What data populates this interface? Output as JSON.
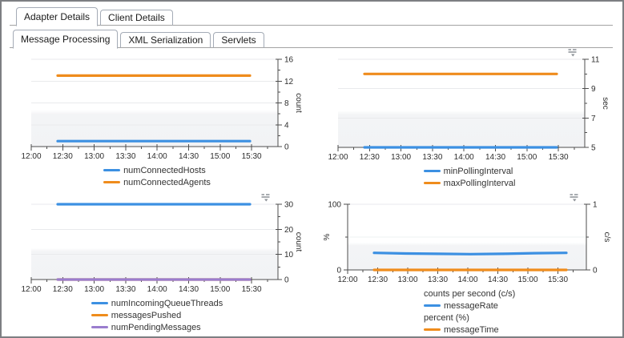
{
  "tabs": {
    "level1": [
      {
        "label": "Adapter Details",
        "active": true
      },
      {
        "label": "Client Details",
        "active": false
      }
    ],
    "level2": [
      {
        "label": "Message Processing",
        "active": true
      },
      {
        "label": "XML Serialization",
        "active": false
      },
      {
        "label": "Servlets",
        "active": false
      }
    ]
  },
  "colors": {
    "blue": "#3c90e2",
    "orange": "#ef8c1c",
    "purple": "#9a7dce"
  },
  "icons": {
    "chart_menu": "list-with-down-arrow"
  },
  "chart_data": [
    {
      "type": "line",
      "name": "connected-hosts-agents",
      "x": [
        "12:00",
        "12:30",
        "13:00",
        "13:30",
        "14:00",
        "14:30",
        "15:00",
        "15:30"
      ],
      "y_right": {
        "label": "count",
        "min": 0,
        "max": 16,
        "ticks": [
          0,
          4,
          8,
          12,
          16
        ],
        "minors": [
          2,
          6,
          10,
          14
        ]
      },
      "menu_icon": false,
      "legend_position": "bottom-center",
      "series": [
        {
          "name": "numConnectedHosts",
          "color": "#3c90e2",
          "values": [
            1,
            1,
            1,
            1,
            1,
            1,
            1
          ]
        },
        {
          "name": "numConnectedAgents",
          "color": "#ef8c1c",
          "values": [
            13,
            13,
            13,
            13,
            13,
            13,
            13
          ]
        }
      ]
    },
    {
      "type": "line",
      "name": "polling-interval",
      "x": [
        "12:00",
        "12:30",
        "13:00",
        "13:30",
        "14:00",
        "14:30",
        "15:00",
        "15:30"
      ],
      "y_right": {
        "label": "sec",
        "min": 5,
        "max": 11,
        "ticks": [
          5,
          7,
          9,
          11
        ],
        "minors": [
          6,
          8,
          10
        ]
      },
      "menu_icon": true,
      "legend_position": "bottom-center",
      "series": [
        {
          "name": "minPollingInterval",
          "color": "#3c90e2",
          "values": [
            5,
            5,
            5,
            5,
            5,
            5,
            5
          ]
        },
        {
          "name": "maxPollingInterval",
          "color": "#ef8c1c",
          "values": [
            10,
            10,
            10,
            10,
            10,
            10,
            10
          ]
        }
      ]
    },
    {
      "type": "line",
      "name": "queue-threads-messages",
      "x": [
        "12:00",
        "12:30",
        "13:00",
        "13:30",
        "14:00",
        "14:30",
        "15:00",
        "15:30"
      ],
      "y_right": {
        "label": "count",
        "min": 0,
        "max": 30,
        "ticks": [
          0,
          10,
          20,
          30
        ],
        "minors": [
          5,
          15,
          25
        ]
      },
      "menu_icon": true,
      "legend_position": "bottom-center",
      "series": [
        {
          "name": "numIncomingQueueThreads",
          "color": "#3c90e2",
          "values": [
            30,
            30,
            30,
            30,
            30,
            30,
            30
          ]
        },
        {
          "name": "messagesPushed",
          "color": "#ef8c1c",
          "values": [
            0,
            0,
            0,
            0,
            0,
            0,
            0
          ]
        },
        {
          "name": "numPendingMessages",
          "color": "#9a7dce",
          "values": [
            0,
            0,
            0,
            0,
            0,
            0,
            0
          ]
        }
      ]
    },
    {
      "type": "line",
      "name": "message-rate-time",
      "x": [
        "12:00",
        "12:30",
        "13:00",
        "13:30",
        "14:00",
        "14:30",
        "15:00",
        "15:30"
      ],
      "y_left": {
        "label": "%",
        "min": 0,
        "max": 100,
        "ticks": [
          0,
          100
        ],
        "minors": [
          50
        ]
      },
      "y_right": {
        "label": "c/s",
        "min": 0,
        "max": 1,
        "ticks": [
          0,
          1
        ],
        "minors": [
          0.5
        ]
      },
      "menu_icon": true,
      "legend_position": "bottom-left",
      "series": [
        {
          "name": "messageRate",
          "color": "#3c90e2",
          "axis": "right",
          "values": [
            0.26,
            0.25,
            0.245,
            0.24,
            0.245,
            0.255,
            0.26
          ]
        },
        {
          "name": "messageTime",
          "color": "#ef8c1c",
          "axis": "left",
          "values": [
            0,
            0,
            0,
            0,
            0,
            0,
            0
          ]
        }
      ],
      "legend_groups": [
        {
          "title": "counts per second (c/s)",
          "items": [
            "messageRate"
          ]
        },
        {
          "title": "percent (%)",
          "items": [
            "messageTime"
          ]
        }
      ]
    }
  ]
}
